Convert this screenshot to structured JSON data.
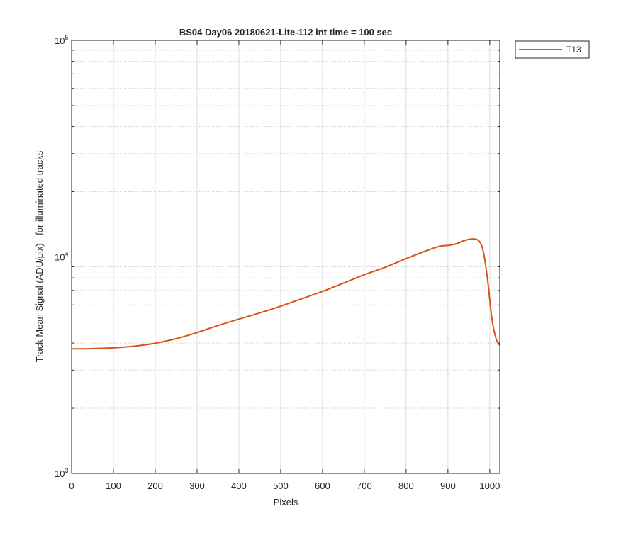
{
  "chart_data": {
    "type": "line",
    "title": "BS04 Day06 20180621-Lite-112 int time = 100 sec",
    "xlabel": "Pixels",
    "ylabel": "Track Mean Signal (ADU/pix) - for illuminated tracks",
    "xlim": [
      0,
      1024
    ],
    "ylim": [
      1000,
      100000
    ],
    "yscale": "log",
    "xticks": [
      0,
      100,
      200,
      300,
      400,
      500,
      600,
      700,
      800,
      900,
      1000
    ],
    "xtick_labels": [
      "0",
      "100",
      "200",
      "300",
      "400",
      "500",
      "600",
      "700",
      "800",
      "900",
      "1000"
    ],
    "yticks": [
      {
        "base": "10",
        "exp": "3",
        "value": 1000
      },
      {
        "base": "10",
        "exp": "4",
        "value": 10000
      },
      {
        "base": "10",
        "exp": "5",
        "value": 100000
      }
    ],
    "grid": true,
    "minor_grid": true,
    "legend_position": "outside-top-right",
    "series": [
      {
        "name": "T13",
        "color": "#D95319",
        "x": [
          0,
          50,
          100,
          150,
          200,
          250,
          300,
          350,
          400,
          450,
          500,
          550,
          600,
          650,
          700,
          750,
          800,
          850,
          880,
          900,
          920,
          940,
          960,
          975,
          985,
          995,
          1005,
          1015,
          1024
        ],
        "y": [
          3760,
          3770,
          3800,
          3870,
          3990,
          4190,
          4470,
          4820,
          5160,
          5510,
          5920,
          6400,
          6930,
          7560,
          8270,
          8950,
          9820,
          10700,
          11200,
          11300,
          11500,
          11900,
          12100,
          11800,
          10500,
          7800,
          5200,
          4200,
          3900
        ]
      }
    ]
  }
}
